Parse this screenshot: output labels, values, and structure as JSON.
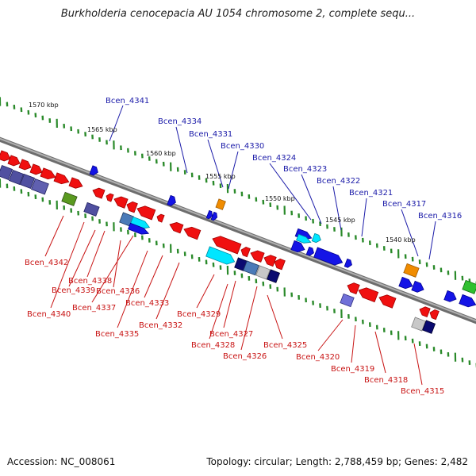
{
  "title": "Burkholderia cenocepacia AU 1054 chromosome 2, complete sequ...",
  "footer": {
    "accession": "Accession: NC_008061",
    "topology": "Topology: circular; Length: 2,788,459 bp; Genes: 2,482"
  },
  "colors": {
    "forward_gene": "#1a1aa8",
    "reverse_gene": "#c81414",
    "backbone": "#888888",
    "ticks": "#2a8a2a"
  },
  "kbp_ticks": [
    "1570 kbp",
    "1565 kbp",
    "1560 kbp",
    "1555 kbp",
    "1550 kbp",
    "1545 kbp",
    "1540 kbp"
  ],
  "forward_genes": [
    "Bcen_4341",
    "Bcen_4334",
    "Bcen_4331",
    "Bcen_4330",
    "Bcen_4324",
    "Bcen_4323",
    "Bcen_4322",
    "Bcen_4321",
    "Bcen_4317",
    "Bcen_4316"
  ],
  "reverse_genes": [
    "Bcen_4342",
    "Bcen_4338",
    "Bcen_4339",
    "Bcen_4336",
    "Bcen_4340",
    "Bcen_4337",
    "Bcen_4333",
    "Bcen_4335",
    "Bcen_4332",
    "Bcen_4329",
    "Bcen_4327",
    "Bcen_4328",
    "Bcen_4326",
    "Bcen_4325",
    "Bcen_4320",
    "Bcen_4319",
    "Bcen_4318",
    "Bcen_4315"
  ]
}
